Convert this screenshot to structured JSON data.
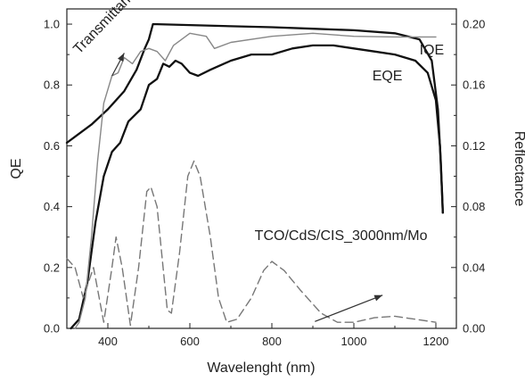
{
  "chart_data": {
    "type": "line",
    "title": "",
    "xlabel": "Wavelenght (nm)",
    "ylabel": "QE",
    "y2label": "Reflectance",
    "xlim": [
      300,
      1250
    ],
    "ylim": [
      0,
      1.05
    ],
    "y2lim": [
      0,
      0.21
    ],
    "grid": false,
    "legend": "none",
    "x_ticks": [
      "400",
      "600",
      "800",
      "1000",
      "1200"
    ],
    "y_ticks": [
      "0.0",
      "0.2",
      "0.4",
      "0.6",
      "0.8",
      "1.0"
    ],
    "y2_ticks": [
      "0.00",
      "0.04",
      "0.08",
      "0.12",
      "0.16",
      "0.20"
    ],
    "series": [
      {
        "name": "IQE",
        "axis": "left",
        "style": "solid-thick",
        "color": "#111111",
        "points": [
          [
            300,
            0.61
          ],
          [
            320,
            0.63
          ],
          [
            360,
            0.67
          ],
          [
            400,
            0.72
          ],
          [
            440,
            0.78
          ],
          [
            470,
            0.85
          ],
          [
            490,
            0.92
          ],
          [
            500,
            0.95
          ],
          [
            510,
            1.0
          ],
          [
            600,
            0.997
          ],
          [
            700,
            0.993
          ],
          [
            800,
            0.99
          ],
          [
            900,
            0.985
          ],
          [
            1000,
            0.98
          ],
          [
            1100,
            0.97
          ],
          [
            1160,
            0.95
          ],
          [
            1190,
            0.88
          ],
          [
            1205,
            0.72
          ],
          [
            1212,
            0.55
          ],
          [
            1217,
            0.38
          ]
        ]
      },
      {
        "name": "EQE",
        "axis": "left",
        "style": "solid-thick",
        "color": "#111111",
        "points": [
          [
            310,
            0.0
          ],
          [
            330,
            0.03
          ],
          [
            350,
            0.15
          ],
          [
            370,
            0.35
          ],
          [
            390,
            0.5
          ],
          [
            410,
            0.58
          ],
          [
            430,
            0.61
          ],
          [
            450,
            0.68
          ],
          [
            480,
            0.72
          ],
          [
            500,
            0.8
          ],
          [
            520,
            0.82
          ],
          [
            535,
            0.87
          ],
          [
            550,
            0.86
          ],
          [
            565,
            0.88
          ],
          [
            580,
            0.87
          ],
          [
            600,
            0.84
          ],
          [
            620,
            0.83
          ],
          [
            650,
            0.85
          ],
          [
            700,
            0.88
          ],
          [
            750,
            0.9
          ],
          [
            800,
            0.9
          ],
          [
            850,
            0.92
          ],
          [
            900,
            0.93
          ],
          [
            950,
            0.93
          ],
          [
            1000,
            0.92
          ],
          [
            1050,
            0.91
          ],
          [
            1100,
            0.9
          ],
          [
            1150,
            0.88
          ],
          [
            1180,
            0.84
          ],
          [
            1200,
            0.75
          ],
          [
            1210,
            0.6
          ],
          [
            1215,
            0.45
          ],
          [
            1217,
            0.38
          ]
        ]
      },
      {
        "name": "Transmittance",
        "axis": "left",
        "style": "solid-thin",
        "color": "#888888",
        "points": [
          [
            320,
            0.0
          ],
          [
            330,
            0.02
          ],
          [
            345,
            0.1
          ],
          [
            360,
            0.3
          ],
          [
            375,
            0.55
          ],
          [
            390,
            0.74
          ],
          [
            410,
            0.83
          ],
          [
            425,
            0.84
          ],
          [
            440,
            0.89
          ],
          [
            460,
            0.87
          ],
          [
            480,
            0.91
          ],
          [
            500,
            0.92
          ],
          [
            520,
            0.91
          ],
          [
            540,
            0.88
          ],
          [
            560,
            0.93
          ],
          [
            600,
            0.97
          ],
          [
            640,
            0.96
          ],
          [
            660,
            0.92
          ],
          [
            700,
            0.94
          ],
          [
            800,
            0.96
          ],
          [
            900,
            0.97
          ],
          [
            1000,
            0.96
          ],
          [
            1100,
            0.958
          ],
          [
            1200,
            0.958
          ]
        ]
      },
      {
        "name": "Reflectance",
        "axis": "right",
        "style": "dashed",
        "color": "#777777",
        "points": [
          [
            300,
            0.046
          ],
          [
            320,
            0.04
          ],
          [
            340,
            0.02
          ],
          [
            365,
            0.04
          ],
          [
            390,
            0.004
          ],
          [
            410,
            0.04
          ],
          [
            420,
            0.06
          ],
          [
            435,
            0.04
          ],
          [
            455,
            0.002
          ],
          [
            475,
            0.04
          ],
          [
            495,
            0.09
          ],
          [
            505,
            0.093
          ],
          [
            520,
            0.08
          ],
          [
            545,
            0.012
          ],
          [
            555,
            0.01
          ],
          [
            575,
            0.05
          ],
          [
            595,
            0.1
          ],
          [
            610,
            0.11
          ],
          [
            625,
            0.1
          ],
          [
            650,
            0.06
          ],
          [
            670,
            0.02
          ],
          [
            690,
            0.004
          ],
          [
            715,
            0.006
          ],
          [
            750,
            0.02
          ],
          [
            780,
            0.038
          ],
          [
            800,
            0.044
          ],
          [
            830,
            0.038
          ],
          [
            870,
            0.025
          ],
          [
            920,
            0.01
          ],
          [
            960,
            0.004
          ],
          [
            1000,
            0.004
          ],
          [
            1050,
            0.007
          ],
          [
            1100,
            0.008
          ],
          [
            1150,
            0.006
          ],
          [
            1200,
            0.004
          ]
        ]
      }
    ],
    "annotations": [
      {
        "text": "Transmittance",
        "x": 330,
        "y": 0.9,
        "rotate": -46
      },
      {
        "text": "IQE",
        "x": 1160,
        "y": 0.9
      },
      {
        "text": "EQE",
        "x": 1045,
        "y": 0.815
      },
      {
        "text": "TCO/CdS/CIS_3000nm/Mo",
        "x": 758,
        "y": 0.29
      }
    ],
    "arrows": [
      {
        "axis": "left",
        "from": [
          410,
          0.83
        ],
        "to": [
          440,
          0.905
        ]
      },
      {
        "axis": "right",
        "from": [
          905,
          0.0045
        ],
        "to": [
          1070,
          0.0218
        ]
      }
    ]
  }
}
